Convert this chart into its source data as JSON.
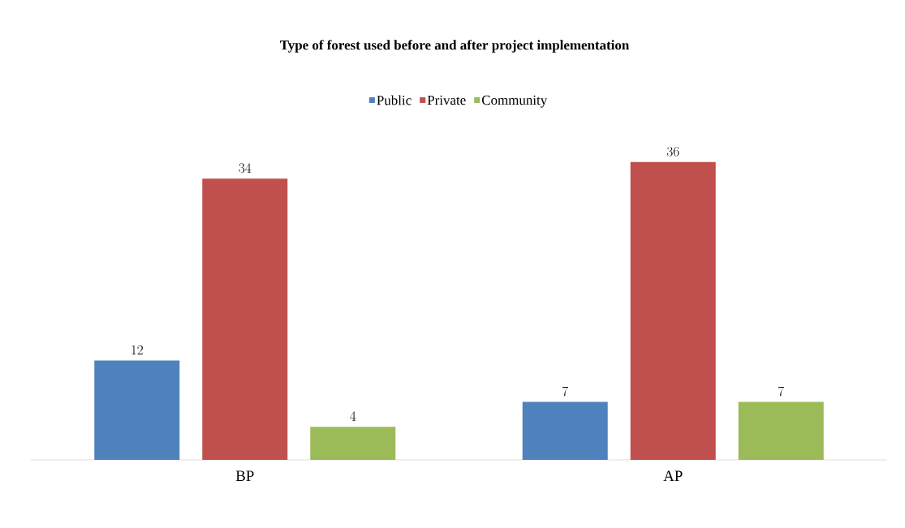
{
  "chart_data": {
    "type": "bar",
    "title": "Type of forest used before and after project implementation",
    "categories": [
      "BP",
      "AP"
    ],
    "series": [
      {
        "name": "Public",
        "color": "#4f81bd",
        "values": [
          12,
          7
        ]
      },
      {
        "name": "Private",
        "color": "#c0504d",
        "values": [
          34,
          36
        ]
      },
      {
        "name": "Community",
        "color": "#9bbb59",
        "values": [
          4,
          7
        ]
      }
    ],
    "data_labels": true,
    "legend": "top"
  }
}
